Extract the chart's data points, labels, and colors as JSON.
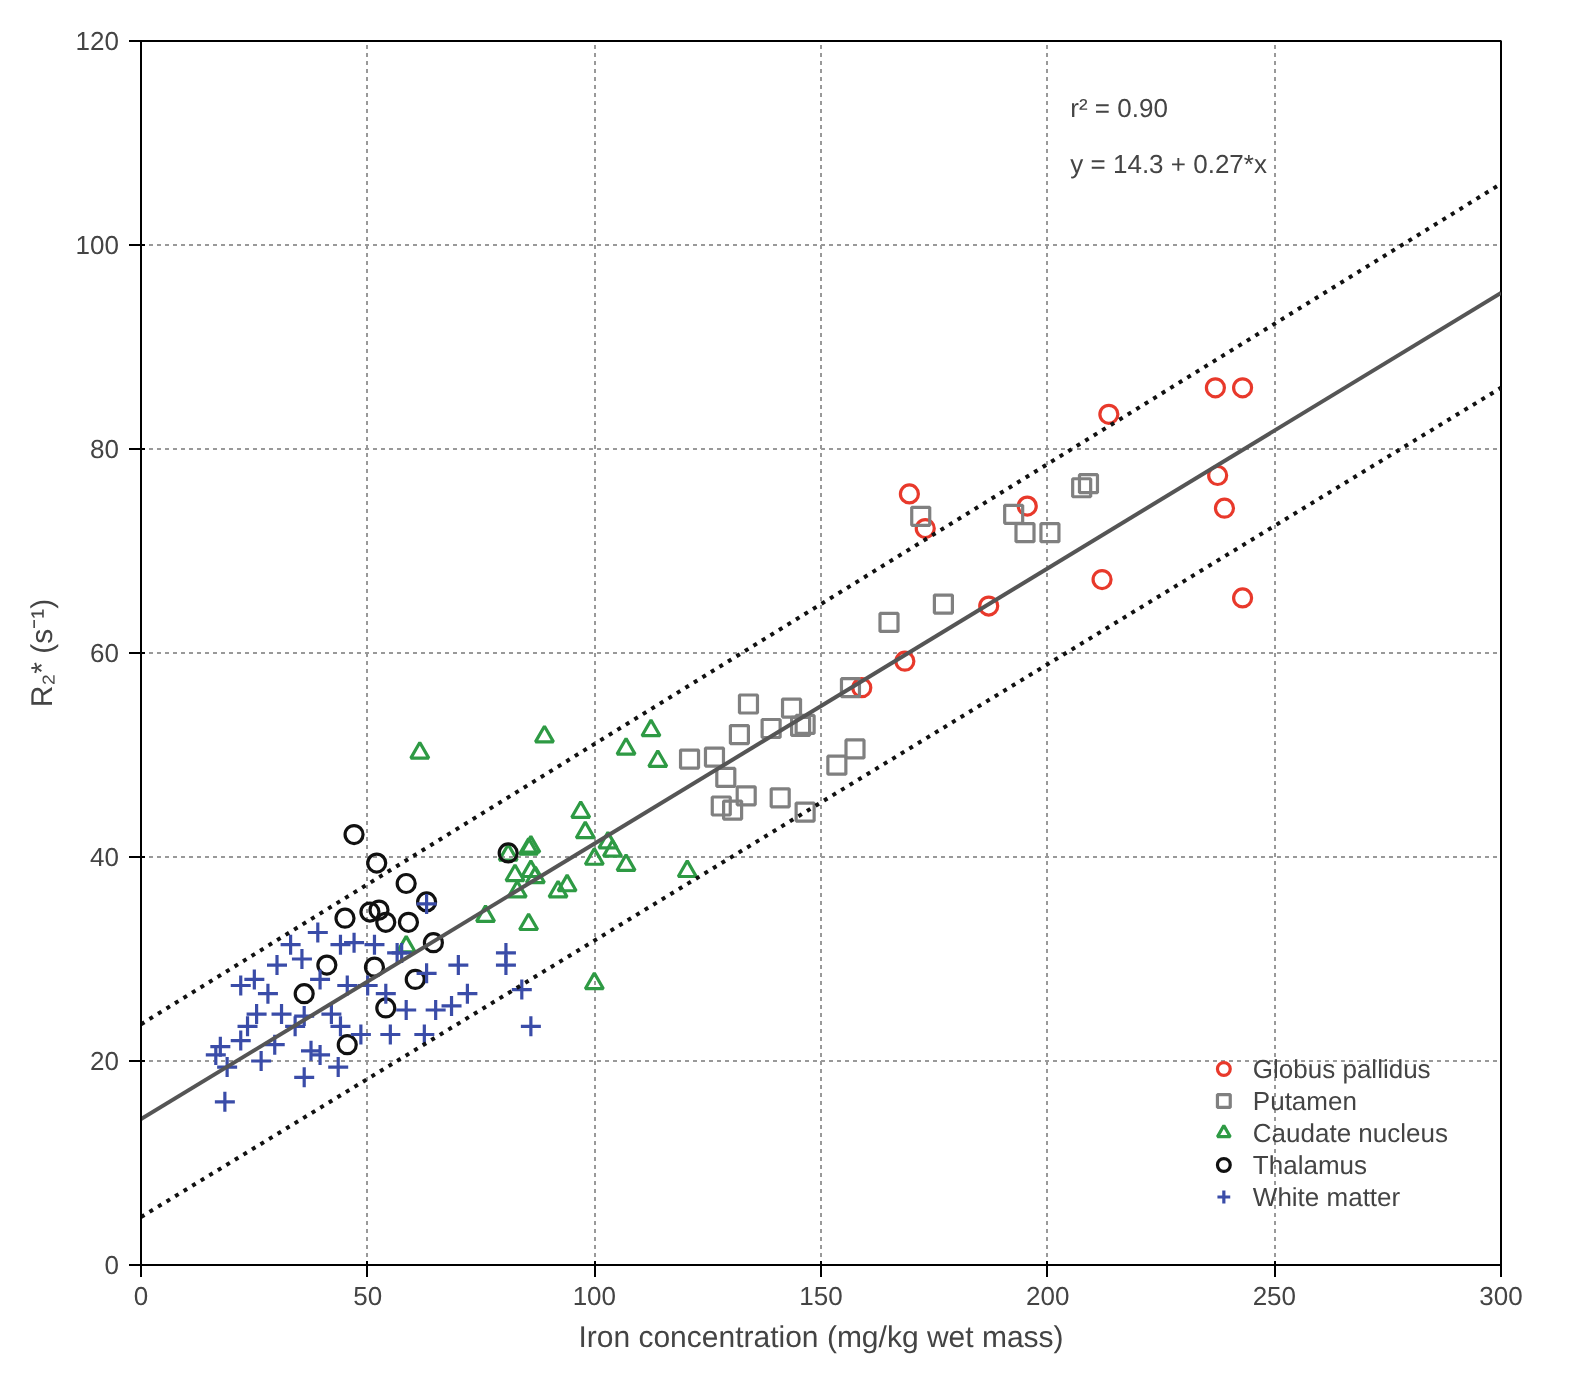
{
  "chart_data": {
    "type": "scatter",
    "xlabel": "Iron concentration (mg/kg wet mass)",
    "ylabel": "R₂* (s⁻¹)",
    "annotations": [
      "r² = 0.90",
      "y = 14.3 + 0.27*x"
    ],
    "xlim": [
      0,
      300
    ],
    "ylim": [
      0,
      120
    ],
    "xticks": [
      0,
      50,
      100,
      150,
      200,
      250,
      300
    ],
    "yticks": [
      0,
      20,
      40,
      60,
      80,
      100,
      120
    ],
    "grid": true,
    "legend": "bottom right",
    "series": [
      {
        "name": "Globus pallidus",
        "color": "#e8392b",
        "marker": "circle",
        "x": [
          169.5,
          173,
          195.5,
          187,
          168.5,
          159,
          212,
          237.5,
          239,
          243,
          213.5,
          237,
          243
        ],
        "values": [
          75.6,
          72.2,
          74.4,
          64.6,
          59.2,
          56.6,
          67.2,
          77.4,
          74.2,
          65.4,
          83.4,
          86,
          86
        ]
      },
      {
        "name": "Putamen",
        "color": "#808080",
        "marker": "square",
        "x": [
          146.5,
          153.5,
          157.5,
          156.5,
          165,
          177,
          172,
          192.5,
          195,
          200.5,
          207.5,
          209,
          121,
          126.5,
          129,
          134,
          132,
          139,
          143.5,
          145.5,
          128,
          130.5,
          133.5,
          141,
          146.5
        ],
        "values": [
          53,
          49,
          50.6,
          56.6,
          63,
          64.8,
          73.4,
          73.6,
          71.8,
          71.8,
          76.2,
          76.6,
          49.6,
          49.8,
          47.8,
          55,
          52,
          52.6,
          54.6,
          52.8,
          45,
          44.6,
          46,
          45.8,
          44.4
        ]
      },
      {
        "name": "Caudate nucleus",
        "color": "#2e9a44",
        "marker": "triangle",
        "x": [
          89,
          107,
          112.5,
          114,
          97,
          98,
          100,
          103,
          104,
          107,
          120.5,
          85.5,
          82.5,
          86,
          83,
          92,
          94,
          61.5,
          81,
          86,
          87,
          76,
          85.5,
          58.5,
          100
        ],
        "values": [
          51.8,
          50.6,
          52.4,
          49.4,
          44.4,
          42.4,
          39.8,
          41.4,
          40.6,
          39.2,
          38.6,
          40.8,
          38.2,
          38.6,
          36.6,
          36.6,
          37.2,
          50.2,
          40.2,
          41,
          38,
          34.2,
          33.4,
          31.2,
          27.6
        ]
      },
      {
        "name": "Thalamus",
        "color": "#111111",
        "marker": "circle",
        "x": [
          47,
          52,
          58.5,
          63,
          45,
          50.5,
          52.5,
          54,
          59,
          64.5,
          51.5,
          60.5,
          41,
          36,
          54,
          45.5,
          81
        ],
        "values": [
          42.2,
          39.4,
          37.4,
          35.6,
          34,
          34.6,
          34.8,
          33.6,
          33.6,
          31.6,
          29.2,
          28,
          29.4,
          26.6,
          25.2,
          21.6,
          40.4
        ]
      },
      {
        "name": "White matter",
        "color": "#3a4ca8",
        "marker": "cross",
        "x": [
          18.5,
          16.5,
          19,
          22,
          23.5,
          22,
          25.5,
          28,
          29.5,
          31,
          33,
          35.5,
          36,
          34,
          37.5,
          39,
          39.5,
          42,
          43.5,
          44,
          47,
          48.5,
          45.5,
          50,
          54,
          55,
          57.5,
          58.5,
          62.5,
          63,
          65,
          68.5,
          70,
          72,
          80.5,
          80.5,
          84,
          86,
          63,
          56.5,
          26.5,
          39.5,
          30,
          51.5,
          25,
          36,
          17.5,
          44
        ],
        "values": [
          16,
          20.6,
          19.4,
          22,
          23.4,
          27.4,
          24.6,
          26.6,
          21.6,
          24.6,
          31.4,
          30,
          18.4,
          23.4,
          21,
          32.6,
          28,
          24.6,
          19.4,
          31.4,
          31.6,
          22.6,
          27.4,
          27.4,
          26.6,
          22.6,
          30.6,
          25,
          22.6,
          28.6,
          25,
          25.4,
          29.4,
          26.6,
          30.6,
          29.4,
          27,
          23.4,
          35.4,
          30.6,
          20,
          20.6,
          29.4,
          31.4,
          28,
          24.4,
          21.4,
          23.4
        ]
      },
      {
        "type": "line",
        "color": "#555555",
        "line_style": "solid",
        "x": [
          0,
          300
        ],
        "values": [
          14.3,
          95.3
        ]
      },
      {
        "type": "line",
        "color": "#111111",
        "line_style": "dotted",
        "x": [
          0,
          300
        ],
        "values": [
          23.6,
          106
        ]
      },
      {
        "type": "line",
        "color": "#111111",
        "line_style": "dotted",
        "x": [
          0,
          300
        ],
        "values": [
          4.7,
          86
        ]
      }
    ]
  }
}
